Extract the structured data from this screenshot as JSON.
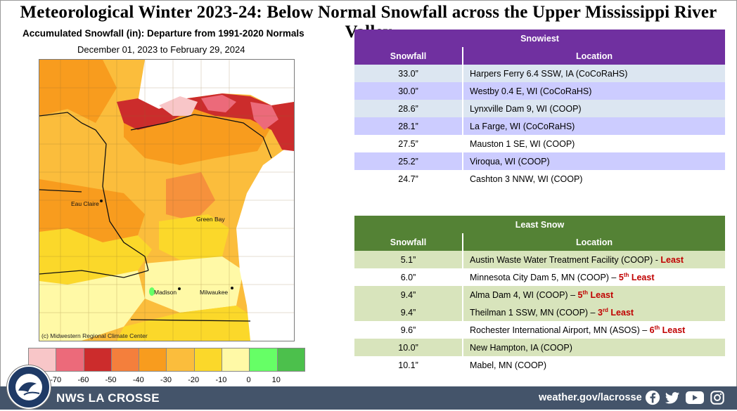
{
  "title": "Meteorological Winter 2023-24:  Below Normal Snowfall across the Upper Mississippi River Valley",
  "map": {
    "title": "Accumulated Snowfall (in): Departure from 1991-2020 Normals",
    "dates": "December 01, 2023 to February 29, 2024",
    "credit": "(c) Midwestern Regional Climate Center",
    "cities": [
      "Eau Claire",
      "Green Bay",
      "Madison",
      "Milwaukee"
    ]
  },
  "legend": {
    "colors": [
      "#f8c6c8",
      "#ec6a7a",
      "#cc2c2c",
      "#f47f3c",
      "#f89c1e",
      "#fbbd3c",
      "#fbd82a",
      "#fff9a6",
      "#66ff66",
      "#4cc04c"
    ],
    "ticks": [
      "-70",
      "-60",
      "-50",
      "-40",
      "-30",
      "-20",
      "-10",
      "0",
      "10"
    ]
  },
  "snowiest": {
    "title": "Snowiest",
    "col_snowfall": "Snowfall",
    "col_location": "Location",
    "rows": [
      {
        "snow": "33.0”",
        "loc": "Harpers Ferry 6.4 SSW, IA (CoCoRaHS)"
      },
      {
        "snow": "30.0”",
        "loc": "Westby 0.4 E, WI (CoCoRaHS)"
      },
      {
        "snow": "28.6”",
        "loc": "Lynxville Dam 9, WI (COOP)"
      },
      {
        "snow": "28.1”",
        "loc": "La Farge, WI (CoCoRaHS)"
      },
      {
        "snow": "27.5”",
        "loc": "Mauston 1 SE, WI (COOP)"
      },
      {
        "snow": "25.2”",
        "loc": "Viroqua, WI (COOP)"
      },
      {
        "snow": "24.7”",
        "loc": "Cashton 3 NNW, WI (COOP)"
      }
    ]
  },
  "least": {
    "title": "Least Snow",
    "col_snowfall": "Snowfall",
    "col_location": "Location",
    "rows": [
      {
        "snow": "5.1”",
        "loc": "Austin Waste Water Treatment Facility (COOP) - ",
        "rank": "",
        "sup": "",
        "suffix": "Least"
      },
      {
        "snow": "6.0”",
        "loc": "Minnesota City Dam 5, MN (COOP) – ",
        "rank": "5",
        "sup": "th",
        "suffix": " Least"
      },
      {
        "snow": "9.4”",
        "loc": "Alma Dam 4, WI (COOP) – ",
        "rank": "5",
        "sup": "th",
        "suffix": " Least"
      },
      {
        "snow": "9.4”",
        "loc": "Theilman 1 SSW, MN (COOP) – ",
        "rank": "3",
        "sup": "rd",
        "suffix": " Least"
      },
      {
        "snow": "9.6”",
        "loc": "Rochester International Airport, MN (ASOS) – ",
        "rank": "6",
        "sup": "th",
        "suffix": " Least"
      },
      {
        "snow": "10.0”",
        "loc": "New Hampton, IA (COOP)",
        "rank": "",
        "sup": "",
        "suffix": ""
      },
      {
        "snow": "10.1”",
        "loc": "Mabel, MN (COOP)",
        "rank": "",
        "sup": "",
        "suffix": ""
      }
    ]
  },
  "footer": {
    "office": "NWS LA CROSSE",
    "site": "weather.gov/lacrosse",
    "social_icons": [
      "facebook-icon",
      "twitter-icon",
      "youtube-icon",
      "instagram-icon"
    ]
  },
  "colors": {
    "snowiest_header": "#7030a0",
    "least_header": "#548235",
    "footer": "#44546a",
    "row_light_blue": "#dce6f1",
    "row_lavender": "#ccccff",
    "row_light_green": "#d8e4bc"
  }
}
